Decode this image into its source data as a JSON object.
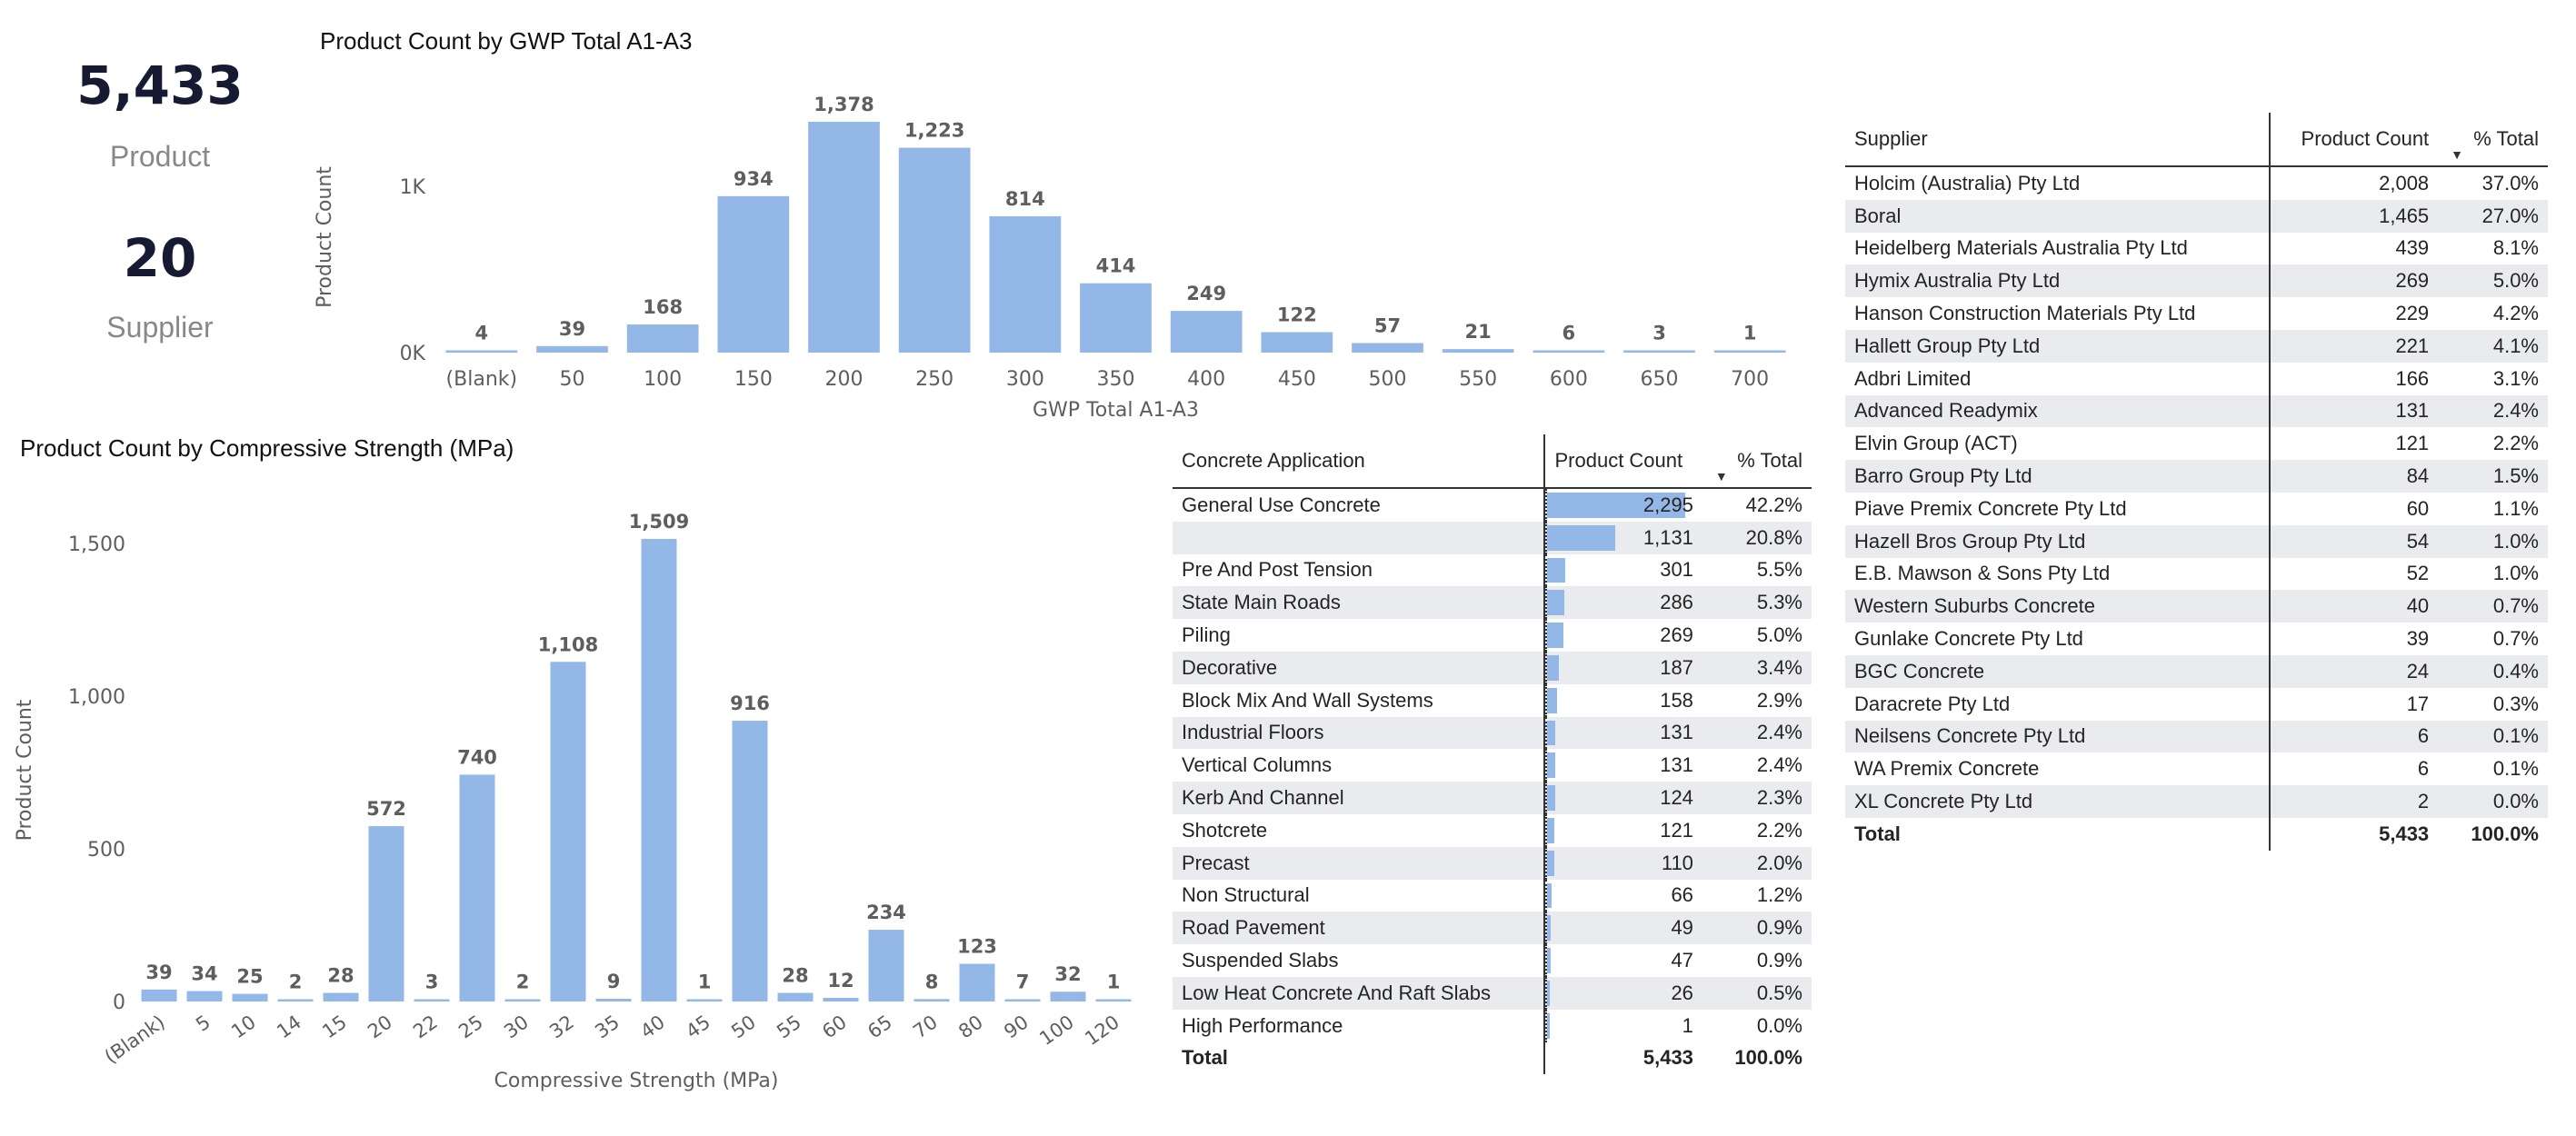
{
  "kpis": {
    "product_value": "5,433",
    "product_label": "Product",
    "supplier_value": "20",
    "supplier_label": "Supplier"
  },
  "chart_data": [
    {
      "type": "bar",
      "title": "Product Count by GWP Total A1-A3",
      "xlabel": "GWP Total A1-A3",
      "ylabel": "Product Count",
      "yticks": [
        "0K",
        "1K"
      ],
      "ylim": [
        0,
        1378
      ],
      "categories": [
        "(Blank)",
        "50",
        "100",
        "150",
        "200",
        "250",
        "300",
        "350",
        "400",
        "450",
        "500",
        "550",
        "600",
        "650",
        "700"
      ],
      "values": [
        4,
        39,
        168,
        934,
        1378,
        1223,
        814,
        414,
        249,
        122,
        57,
        21,
        6,
        3,
        1
      ],
      "labels": [
        "4",
        "39",
        "168",
        "934",
        "1,378",
        "1,223",
        "814",
        "414",
        "249",
        "122",
        "57",
        "21",
        "6",
        "3",
        "1"
      ],
      "color": "#93b8e8"
    },
    {
      "type": "bar",
      "title": "Product Count by Compressive Strength (MPa)",
      "xlabel": "Compressive Strength (MPa)",
      "ylabel": "Product Count",
      "yticks": [
        "0",
        "500",
        "1,000",
        "1,500"
      ],
      "ylim": [
        0,
        1509
      ],
      "categories": [
        "(Blank)",
        "5",
        "10",
        "14",
        "15",
        "20",
        "22",
        "25",
        "30",
        "32",
        "35",
        "40",
        "45",
        "50",
        "55",
        "60",
        "65",
        "70",
        "80",
        "90",
        "100",
        "120"
      ],
      "values": [
        39,
        34,
        25,
        2,
        28,
        572,
        3,
        740,
        2,
        1108,
        9,
        1509,
        1,
        916,
        28,
        12,
        234,
        8,
        123,
        7,
        32,
        1
      ],
      "labels": [
        "39",
        "34",
        "25",
        "2",
        "28",
        "572",
        "3",
        "740",
        "2",
        "1,108",
        "9",
        "1,509",
        "1",
        "916",
        "28",
        "12",
        "234",
        "8",
        "123",
        "7",
        "32",
        "1"
      ],
      "color": "#93b8e8"
    },
    {
      "type": "table",
      "headers": [
        "Concrete Application",
        "Product Count",
        "% Total"
      ],
      "rows": [
        {
          "name": "General Use Concrete",
          "count": "2,295",
          "pct": "42.2%",
          "value": 2295
        },
        {
          "name": "",
          "count": "1,131",
          "pct": "20.8%",
          "value": 1131
        },
        {
          "name": "Pre And Post Tension",
          "count": "301",
          "pct": "5.5%",
          "value": 301
        },
        {
          "name": "State Main Roads",
          "count": "286",
          "pct": "5.3%",
          "value": 286
        },
        {
          "name": "Piling",
          "count": "269",
          "pct": "5.0%",
          "value": 269
        },
        {
          "name": "Decorative",
          "count": "187",
          "pct": "3.4%",
          "value": 187
        },
        {
          "name": "Block Mix And Wall Systems",
          "count": "158",
          "pct": "2.9%",
          "value": 158
        },
        {
          "name": "Industrial Floors",
          "count": "131",
          "pct": "2.4%",
          "value": 131
        },
        {
          "name": "Vertical Columns",
          "count": "131",
          "pct": "2.4%",
          "value": 131
        },
        {
          "name": "Kerb And Channel",
          "count": "124",
          "pct": "2.3%",
          "value": 124
        },
        {
          "name": "Shotcrete",
          "count": "121",
          "pct": "2.2%",
          "value": 121
        },
        {
          "name": "Precast",
          "count": "110",
          "pct": "2.0%",
          "value": 110
        },
        {
          "name": "Non Structural",
          "count": "66",
          "pct": "1.2%",
          "value": 66
        },
        {
          "name": "Road Pavement",
          "count": "49",
          "pct": "0.9%",
          "value": 49
        },
        {
          "name": "Suspended Slabs",
          "count": "47",
          "pct": "0.9%",
          "value": 47
        },
        {
          "name": "Low Heat Concrete And Raft Slabs",
          "count": "26",
          "pct": "0.5%",
          "value": 26
        },
        {
          "name": "High Performance",
          "count": "1",
          "pct": "0.0%",
          "value": 1
        }
      ],
      "total": {
        "name": "Total",
        "count": "5,433",
        "pct": "100.0%"
      }
    },
    {
      "type": "table",
      "headers": [
        "Supplier",
        "Product Count",
        "% Total"
      ],
      "rows": [
        {
          "name": "Holcim (Australia) Pty Ltd",
          "count": "2,008",
          "pct": "37.0%"
        },
        {
          "name": "Boral",
          "count": "1,465",
          "pct": "27.0%"
        },
        {
          "name": "Heidelberg Materials Australia Pty Ltd",
          "count": "439",
          "pct": "8.1%"
        },
        {
          "name": "Hymix Australia Pty Ltd",
          "count": "269",
          "pct": "5.0%"
        },
        {
          "name": "Hanson Construction Materials Pty Ltd",
          "count": "229",
          "pct": "4.2%"
        },
        {
          "name": "Hallett Group Pty Ltd",
          "count": "221",
          "pct": "4.1%"
        },
        {
          "name": "Adbri Limited",
          "count": "166",
          "pct": "3.1%"
        },
        {
          "name": "Advanced Readymix",
          "count": "131",
          "pct": "2.4%"
        },
        {
          "name": "Elvin Group (ACT)",
          "count": "121",
          "pct": "2.2%"
        },
        {
          "name": "Barro Group Pty Ltd",
          "count": "84",
          "pct": "1.5%"
        },
        {
          "name": "Piave Premix Concrete Pty Ltd",
          "count": "60",
          "pct": "1.1%"
        },
        {
          "name": "Hazell Bros Group Pty Ltd",
          "count": "54",
          "pct": "1.0%"
        },
        {
          "name": "E.B. Mawson & Sons Pty Ltd",
          "count": "52",
          "pct": "1.0%"
        },
        {
          "name": "Western Suburbs Concrete",
          "count": "40",
          "pct": "0.7%"
        },
        {
          "name": "Gunlake Concrete Pty Ltd",
          "count": "39",
          "pct": "0.7%"
        },
        {
          "name": "BGC Concrete",
          "count": "24",
          "pct": "0.4%"
        },
        {
          "name": "Daracrete Pty Ltd",
          "count": "17",
          "pct": "0.3%"
        },
        {
          "name": "Neilsens Concrete Pty Ltd",
          "count": "6",
          "pct": "0.1%"
        },
        {
          "name": "WA Premix Concrete",
          "count": "6",
          "pct": "0.1%"
        },
        {
          "name": "XL Concrete Pty Ltd",
          "count": "2",
          "pct": "0.0%"
        }
      ],
      "total": {
        "name": "Total",
        "count": "5,433",
        "pct": "100.0%"
      }
    }
  ]
}
